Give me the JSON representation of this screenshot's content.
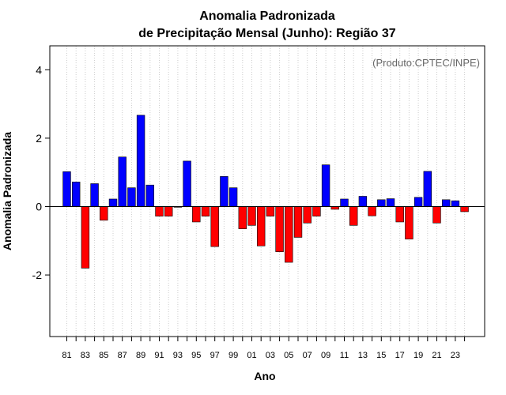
{
  "chart_data": {
    "type": "bar",
    "title_line1": "Anomalia Padronizada",
    "title_line2": "de Precipitação Mensal (Junho): Região 37",
    "xlabel": "Ano",
    "ylabel": "Anomalia Padronizada",
    "credit": "(Produto:CPTEC/INPE)",
    "ylim": [
      -3.8,
      4.7
    ],
    "yticks": [
      -2,
      0,
      2,
      4
    ],
    "ytick_labels": [
      "-2",
      "0",
      "2",
      "4"
    ],
    "categories": [
      "81",
      "82",
      "83",
      "84",
      "85",
      "86",
      "87",
      "88",
      "89",
      "90",
      "91",
      "92",
      "93",
      "94",
      "95",
      "96",
      "97",
      "98",
      "99",
      "00",
      "01",
      "02",
      "03",
      "04",
      "05",
      "06",
      "07",
      "08",
      "09",
      "10",
      "11",
      "12",
      "13",
      "14",
      "15",
      "16",
      "17",
      "18",
      "19",
      "20",
      "21",
      "22",
      "23",
      "24"
    ],
    "xtick_labels": [
      "81",
      "83",
      "85",
      "87",
      "89",
      "91",
      "93",
      "95",
      "97",
      "99",
      "01",
      "03",
      "05",
      "07",
      "09",
      "11",
      "13",
      "15",
      "17",
      "19",
      "21",
      "23"
    ],
    "values": [
      1.02,
      0.72,
      -1.8,
      0.67,
      -0.4,
      0.22,
      1.45,
      0.55,
      2.67,
      0.63,
      -0.28,
      -0.28,
      -0.02,
      1.33,
      -0.45,
      -0.28,
      -1.17,
      0.88,
      0.55,
      -0.65,
      -0.55,
      -1.15,
      -0.28,
      -1.32,
      -1.63,
      -0.9,
      -0.48,
      -0.28,
      1.22,
      -0.08,
      0.22,
      -0.55,
      0.3,
      -0.27,
      0.2,
      0.23,
      -0.45,
      -0.95,
      0.27,
      1.03,
      -0.48,
      0.2,
      0.17,
      -0.15
    ],
    "colors": {
      "positive": "#0000ff",
      "negative": "#ff0000",
      "zero_line": "#000000",
      "grid": "#cccccc",
      "credit": "#666666"
    },
    "grid": true
  }
}
